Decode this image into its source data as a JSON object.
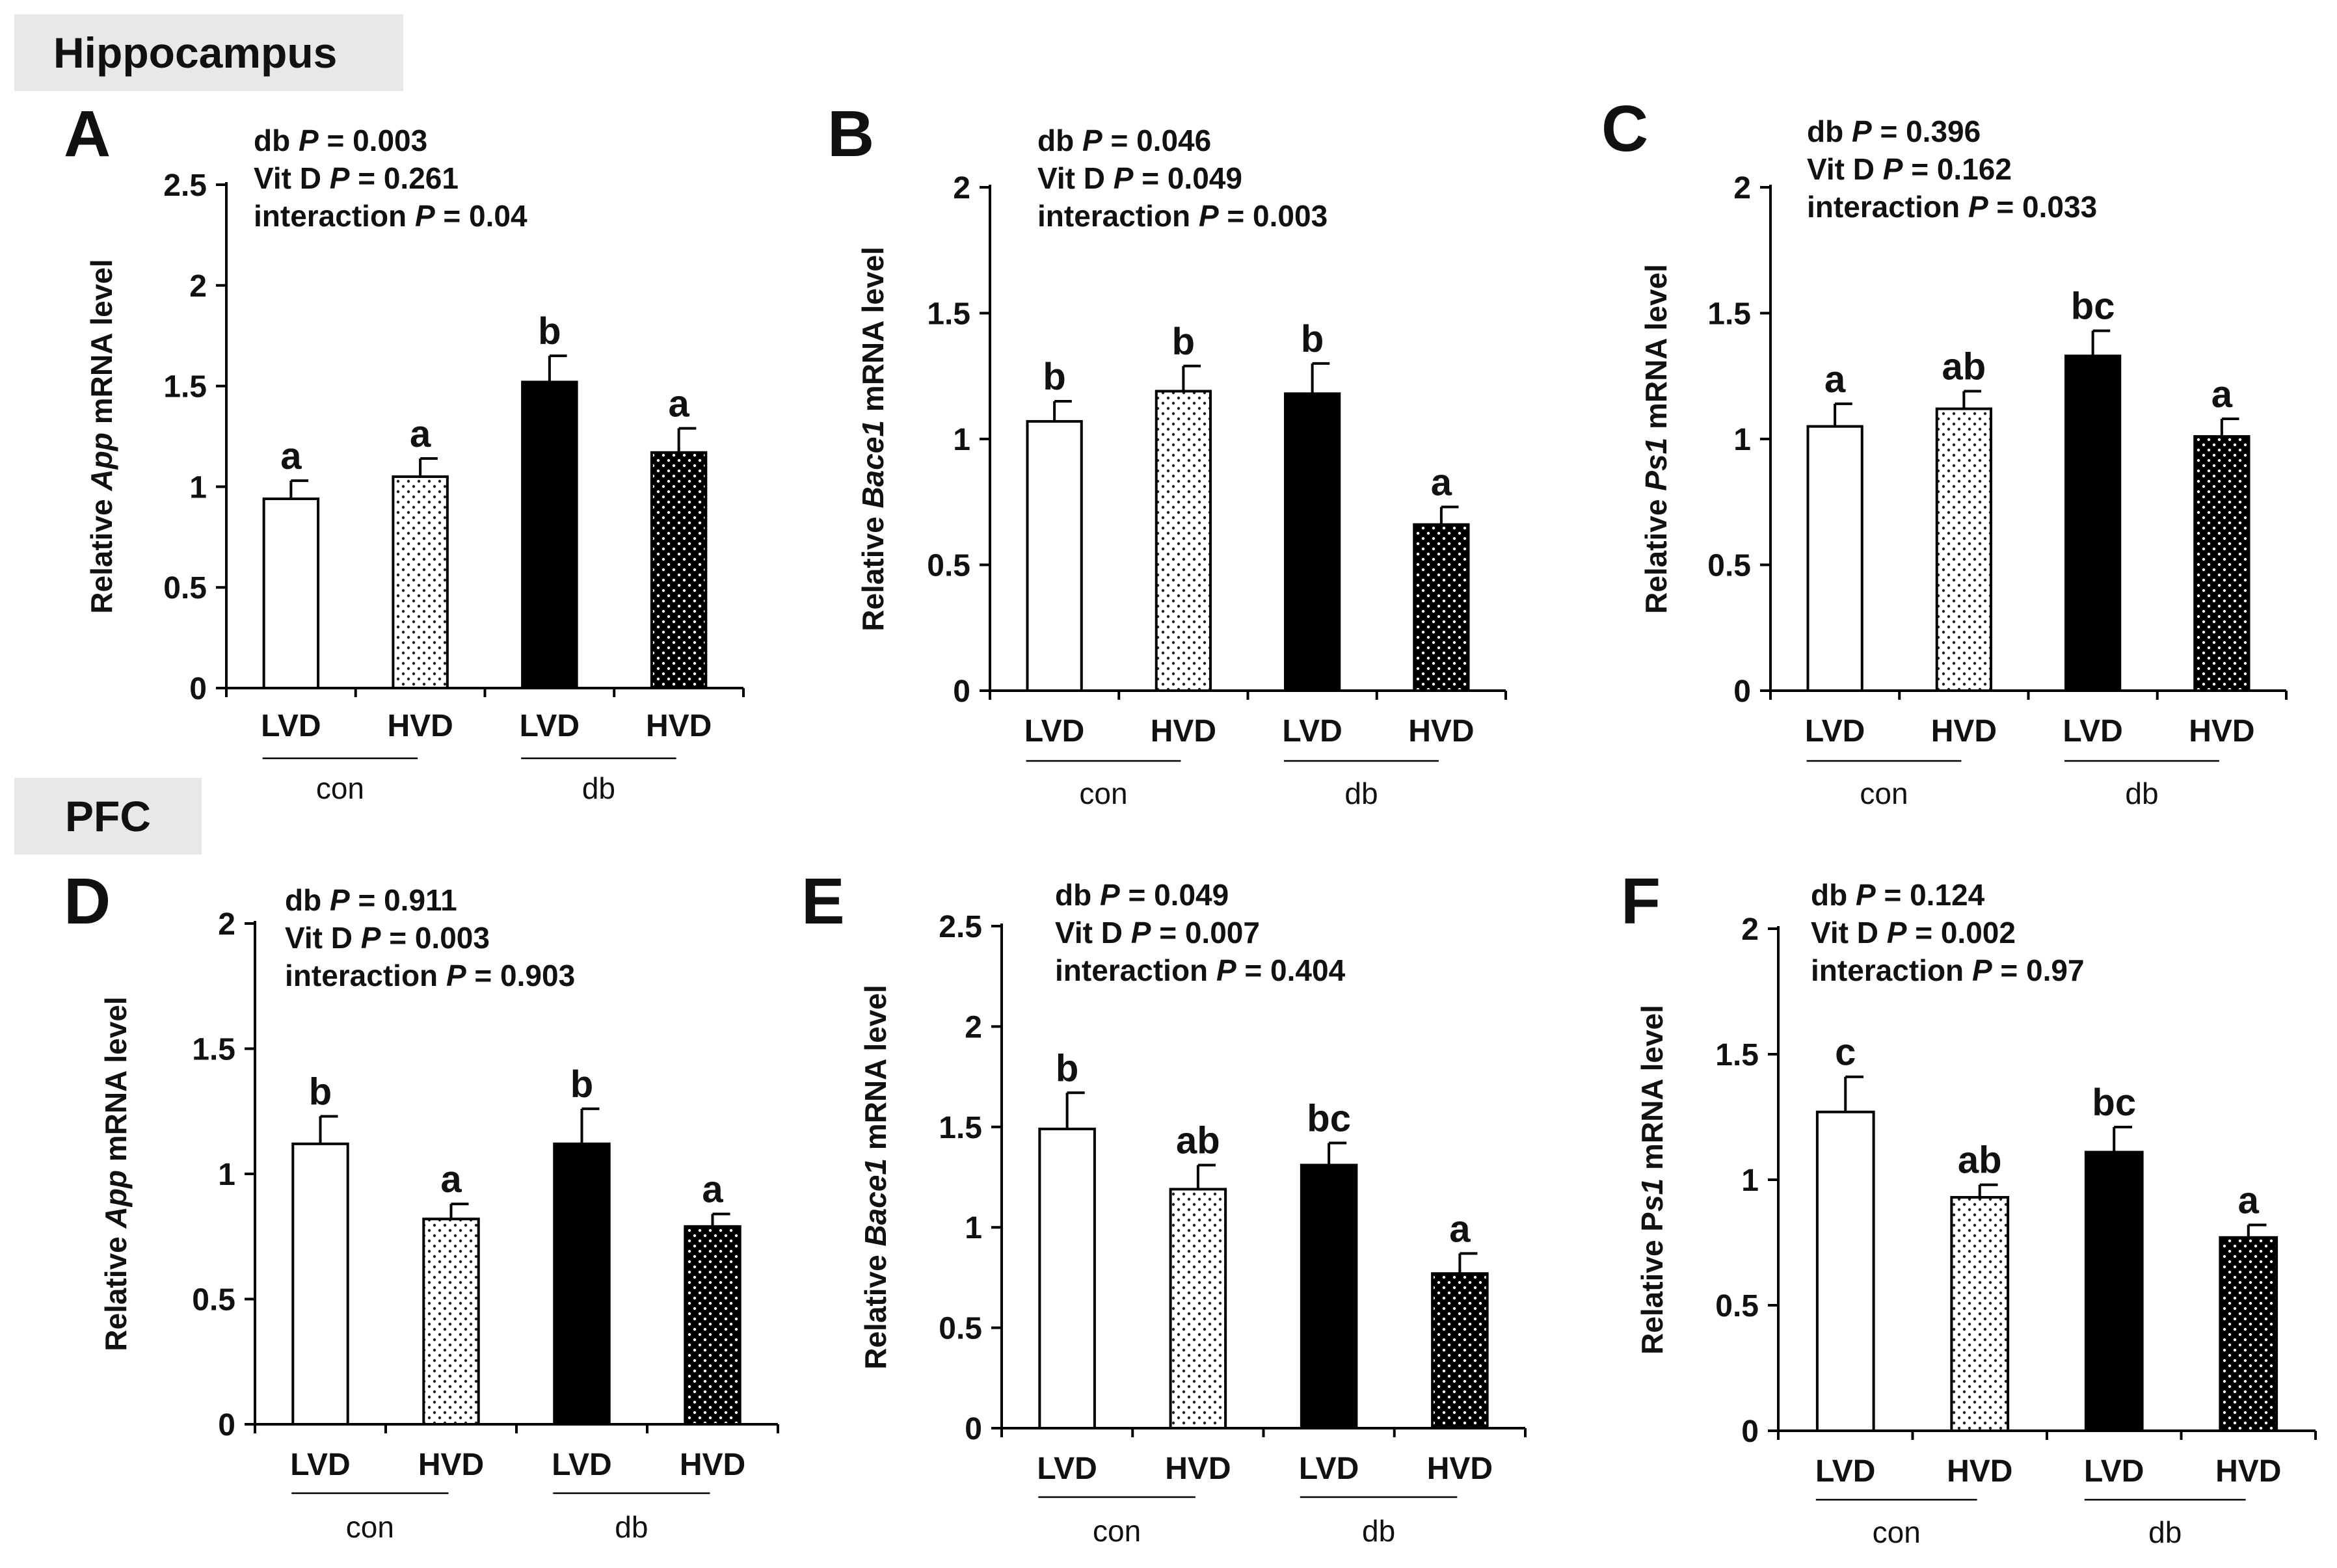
{
  "sections": [
    {
      "label": "Hippocampus"
    },
    {
      "label": "PFC"
    }
  ],
  "colors": {
    "section_bg": "#e8e8e8",
    "bar_outline": "#000000",
    "lvd_fill": "#ffffff",
    "db_lvd_fill": "#000000"
  },
  "patterns": [
    "open",
    "light-dotted",
    "solid-black",
    "dark-dotted"
  ],
  "chart_data": [
    {
      "panel": "A",
      "section": "Hippocampus",
      "type": "bar",
      "ylabel": {
        "pre": "Relative ",
        "gene": "App",
        "post": " mRNA level"
      },
      "ylim": [
        0,
        2.5
      ],
      "yticks": [
        "0",
        "0.5",
        "1",
        "1.5",
        "2",
        "2.5"
      ],
      "categories": [
        "LVD",
        "HVD",
        "LVD",
        "HVD"
      ],
      "groups": [
        "con",
        "db"
      ],
      "values": [
        0.94,
        1.05,
        1.52,
        1.17
      ],
      "errors": [
        0.09,
        0.09,
        0.13,
        0.12
      ],
      "letters": [
        "a",
        "a",
        "b",
        "a"
      ],
      "stats": [
        {
          "label": "db",
          "value": "= 0.003"
        },
        {
          "label": "Vit D",
          "value": "= 0.261"
        },
        {
          "label": "interaction",
          "value": "= 0.04"
        }
      ]
    },
    {
      "panel": "B",
      "section": "Hippocampus",
      "type": "bar",
      "ylabel": {
        "pre": "Relative ",
        "gene": "Bace1",
        "post": " mRNA level"
      },
      "ylim": [
        0,
        2
      ],
      "yticks": [
        "0",
        "0.5",
        "1",
        "1.5",
        "2"
      ],
      "categories": [
        "LVD",
        "HVD",
        "LVD",
        "HVD"
      ],
      "groups": [
        "con",
        "db"
      ],
      "values": [
        1.07,
        1.19,
        1.18,
        0.66
      ],
      "errors": [
        0.08,
        0.1,
        0.12,
        0.07
      ],
      "letters": [
        "b",
        "b",
        "b",
        "a"
      ],
      "stats": [
        {
          "label": "db",
          "value": "= 0.046"
        },
        {
          "label": "Vit D",
          "value": "= 0.049"
        },
        {
          "label": "interaction",
          "value": "= 0.003"
        }
      ]
    },
    {
      "panel": "C",
      "section": "Hippocampus",
      "type": "bar",
      "ylabel": {
        "pre": "Relative ",
        "gene": "Ps1",
        "post": " mRNA level"
      },
      "ylim": [
        0,
        2
      ],
      "yticks": [
        "0",
        "0.5",
        "1",
        "1.5",
        "2"
      ],
      "categories": [
        "LVD",
        "HVD",
        "LVD",
        "HVD"
      ],
      "groups": [
        "con",
        "db"
      ],
      "values": [
        1.05,
        1.12,
        1.33,
        1.01
      ],
      "errors": [
        0.09,
        0.07,
        0.1,
        0.07
      ],
      "letters": [
        "a",
        "ab",
        "bc",
        "a"
      ],
      "stats": [
        {
          "label": "db",
          "value": "= 0.396"
        },
        {
          "label": "Vit D",
          "value": "= 0.162"
        },
        {
          "label": "interaction",
          "value": "= 0.033"
        }
      ]
    },
    {
      "panel": "D",
      "section": "PFC",
      "type": "bar",
      "ylabel": {
        "pre": "Relative ",
        "gene": "App",
        "post": " mRNA level"
      },
      "ylim": [
        0,
        2
      ],
      "yticks": [
        "0",
        "0.5",
        "1",
        "1.5",
        "2"
      ],
      "categories": [
        "LVD",
        "HVD",
        "LVD",
        "HVD"
      ],
      "groups": [
        "con",
        "db"
      ],
      "values": [
        1.12,
        0.82,
        1.12,
        0.79
      ],
      "errors": [
        0.11,
        0.06,
        0.14,
        0.05
      ],
      "letters": [
        "b",
        "a",
        "b",
        "a"
      ],
      "stats": [
        {
          "label": "db",
          "value": "= 0.911"
        },
        {
          "label": "Vit D",
          "value": "= 0.003"
        },
        {
          "label": "interaction",
          "value": "= 0.903"
        }
      ]
    },
    {
      "panel": "E",
      "section": "PFC",
      "type": "bar",
      "ylabel": {
        "pre": "Relative ",
        "gene": "Bace1",
        "post": " mRNA level"
      },
      "ylim": [
        0,
        2.5
      ],
      "yticks": [
        "0",
        "0.5",
        "1",
        "1.5",
        "2",
        "2.5"
      ],
      "categories": [
        "LVD",
        "HVD",
        "LVD",
        "HVD"
      ],
      "groups": [
        "con",
        "db"
      ],
      "values": [
        1.49,
        1.19,
        1.31,
        0.77
      ],
      "errors": [
        0.18,
        0.12,
        0.11,
        0.1
      ],
      "letters": [
        "b",
        "ab",
        "bc",
        "a"
      ],
      "stats": [
        {
          "label": "db",
          "value": "= 0.049"
        },
        {
          "label": "Vit D",
          "value": "= 0.007"
        },
        {
          "label": "interaction",
          "value": "= 0.404"
        }
      ]
    },
    {
      "panel": "F",
      "section": "PFC",
      "type": "bar",
      "ylabel": {
        "pre": "Relative P",
        "gene": "s1",
        "post": " mRNA level"
      },
      "ylim": [
        0,
        2
      ],
      "yticks": [
        "0",
        "0.5",
        "1",
        "1.5",
        "2"
      ],
      "categories": [
        "LVD",
        "HVD",
        "LVD",
        "HVD"
      ],
      "groups": [
        "con",
        "db"
      ],
      "values": [
        1.27,
        0.93,
        1.11,
        0.77
      ],
      "errors": [
        0.14,
        0.05,
        0.1,
        0.05
      ],
      "letters": [
        "c",
        "ab",
        "bc",
        "a"
      ],
      "stats": [
        {
          "label": "db",
          "value": "= 0.124"
        },
        {
          "label": "Vit D",
          "value": "= 0.002"
        },
        {
          "label": "interaction",
          "value": "= 0.97"
        }
      ]
    }
  ]
}
